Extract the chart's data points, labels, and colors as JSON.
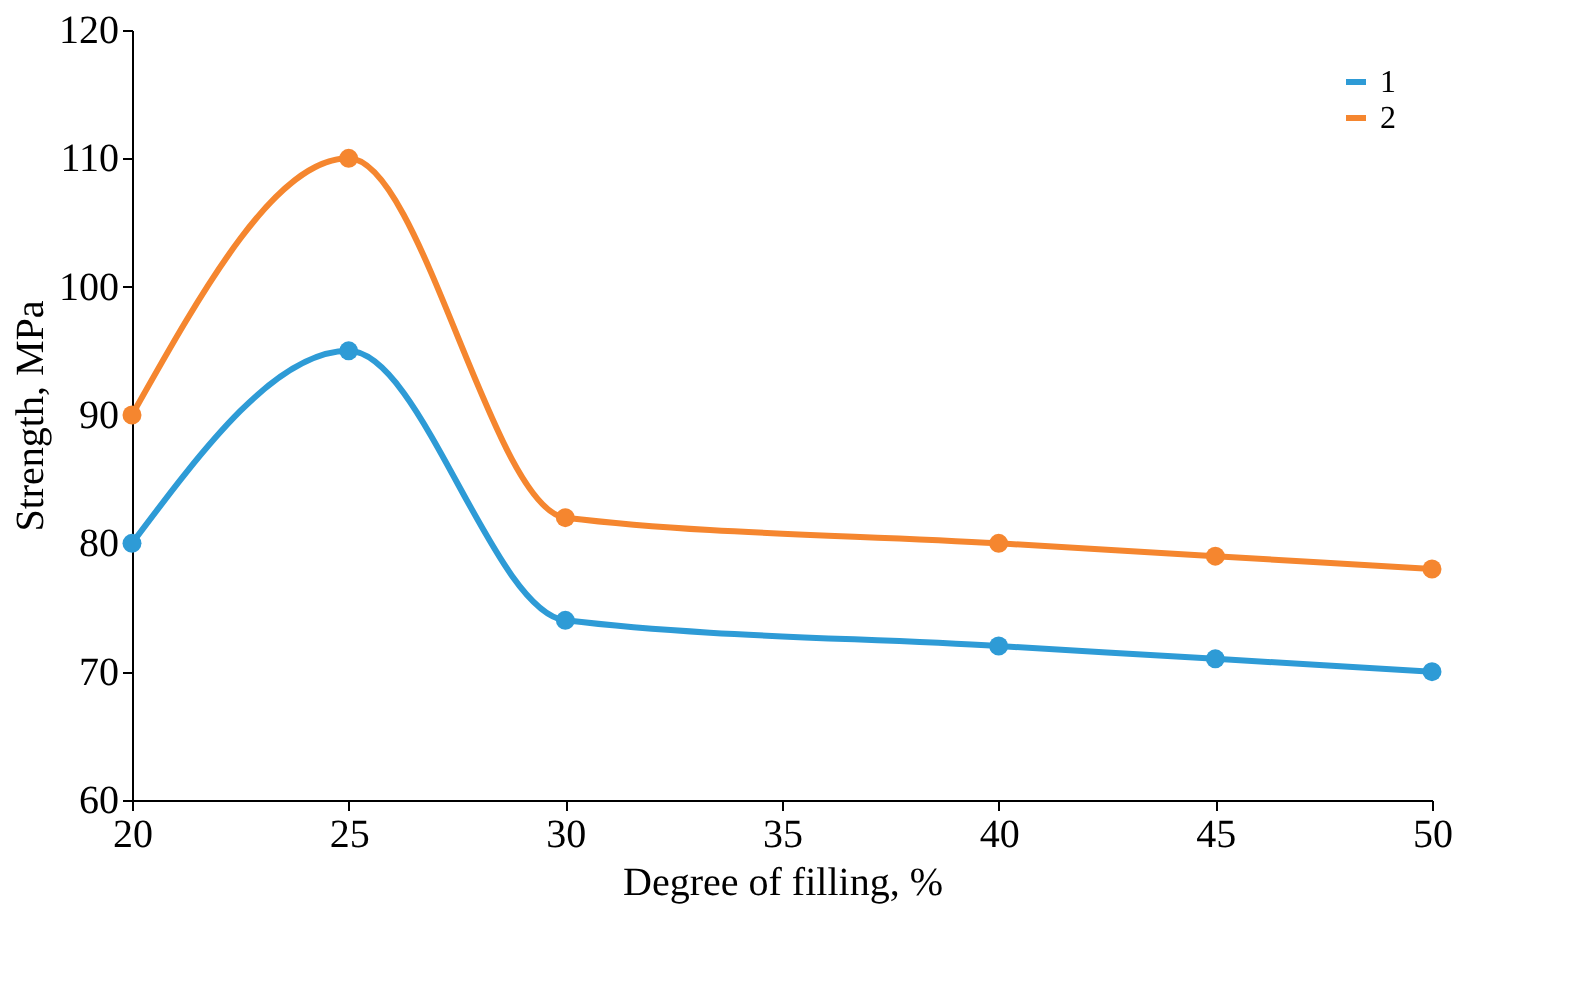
{
  "chart_data": {
    "type": "line",
    "xlabel": "Degree of filling, %",
    "ylabel": "Strength, MPa",
    "x": [
      20,
      25,
      30,
      40,
      45,
      50
    ],
    "series": [
      {
        "name": "1",
        "color": "#2e9bd6",
        "values": [
          80,
          95,
          74,
          72,
          71,
          70
        ]
      },
      {
        "name": "2",
        "color": "#f5862f",
        "values": [
          90,
          110,
          82,
          80,
          79,
          78
        ]
      }
    ],
    "xlim": [
      20,
      50
    ],
    "xticks": [
      20,
      25,
      30,
      35,
      40,
      45,
      50
    ],
    "ylim": [
      60,
      120
    ],
    "yticks": [
      60,
      70,
      80,
      90,
      100,
      110,
      120
    ],
    "grid": false,
    "legend": "top right",
    "marker": "circle",
    "line_style": "solid"
  }
}
